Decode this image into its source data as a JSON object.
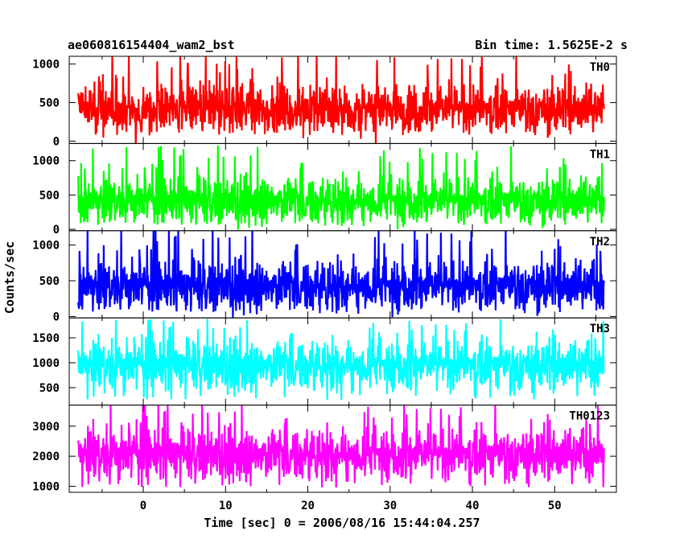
{
  "header": {
    "title": "ae060816154404_wam2_bst",
    "bin_time": "Bin time: 1.5625E-2 s"
  },
  "chart_data": {
    "type": "line",
    "ylabel": "Counts/sec",
    "xlabel": "Time [sec] 0 = 2006/08/16 15:44:04.257",
    "xlim": [
      -9,
      57.5
    ],
    "data_x_range": [
      -7.9,
      56.0
    ],
    "x_ticks": [
      0,
      10,
      20,
      30,
      40,
      50
    ],
    "x_tick_labels": [
      "0",
      "10",
      "20",
      "30",
      "40",
      "50"
    ],
    "panels": [
      {
        "name": "TH0",
        "color": "#ff0000",
        "ylim": [
          -30,
          1100
        ],
        "y_ticks": [
          0,
          500,
          1000
        ],
        "y_tick_labels": [
          "0",
          "500",
          "1000"
        ],
        "mean": 420,
        "low": 80,
        "high": 1100
      },
      {
        "name": "TH1",
        "color": "#00ff00",
        "ylim": [
          -20,
          1250
        ],
        "y_ticks": [
          0,
          500,
          1000
        ],
        "y_tick_labels": [
          "0",
          "500",
          "1000"
        ],
        "mean": 420,
        "low": 60,
        "high": 1150
      },
      {
        "name": "TH2",
        "color": "#0000ff",
        "ylim": [
          -20,
          1200
        ],
        "y_ticks": [
          0,
          500,
          1000
        ],
        "y_tick_labels": [
          "0",
          "500",
          "1000"
        ],
        "mean": 430,
        "low": 60,
        "high": 1200
      },
      {
        "name": "TH3",
        "color": "#00ffff",
        "ylim": [
          150,
          1900
        ],
        "y_ticks": [
          500,
          1000,
          1500
        ],
        "y_tick_labels": [
          "500",
          "1000",
          "1500"
        ],
        "mean": 960,
        "low": 250,
        "high": 1800
      },
      {
        "name": "TH0123",
        "color": "#ff00ff",
        "ylim": [
          800,
          3700
        ],
        "y_ticks": [
          1000,
          2000,
          3000
        ],
        "y_tick_labels": [
          "1000",
          "2000",
          "3000"
        ],
        "mean": 2080,
        "low": 950,
        "high": 3650
      }
    ]
  }
}
